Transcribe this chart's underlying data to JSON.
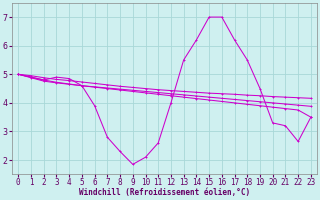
{
  "xlabel": "Windchill (Refroidissement éolien,°C)",
  "ylabel": "",
  "bg_color": "#cff0f0",
  "grid_color": "#a8d8d8",
  "line_color": "#cc00cc",
  "x": [
    0,
    1,
    2,
    3,
    4,
    5,
    6,
    7,
    8,
    9,
    10,
    11,
    12,
    13,
    14,
    15,
    16,
    17,
    18,
    19,
    20,
    21,
    22,
    23
  ],
  "y_main": [
    5.0,
    4.9,
    4.8,
    4.9,
    4.85,
    4.6,
    3.9,
    2.8,
    2.3,
    1.85,
    2.1,
    2.6,
    4.0,
    5.5,
    6.2,
    7.0,
    7.0,
    6.2,
    5.5,
    4.5,
    3.3,
    3.2,
    2.65,
    3.5
  ],
  "y_trend1": [
    5.0,
    4.95,
    4.88,
    4.82,
    4.78,
    4.73,
    4.68,
    4.63,
    4.58,
    4.54,
    4.5,
    4.46,
    4.43,
    4.4,
    4.37,
    4.34,
    4.32,
    4.3,
    4.27,
    4.25,
    4.22,
    4.2,
    4.18,
    4.16
  ],
  "y_trend2": [
    5.0,
    4.9,
    4.8,
    4.72,
    4.66,
    4.6,
    4.55,
    4.5,
    4.45,
    4.4,
    4.35,
    4.3,
    4.25,
    4.2,
    4.15,
    4.1,
    4.05,
    4.0,
    3.95,
    3.9,
    3.85,
    3.8,
    3.75,
    3.5
  ],
  "y_trend3": [
    5.0,
    4.88,
    4.76,
    4.7,
    4.65,
    4.6,
    4.56,
    4.52,
    4.48,
    4.44,
    4.4,
    4.36,
    4.32,
    4.28,
    4.24,
    4.2,
    4.16,
    4.12,
    4.08,
    4.04,
    4.0,
    3.96,
    3.92,
    3.88
  ],
  "xlim": [
    -0.5,
    23.5
  ],
  "ylim": [
    1.5,
    7.5
  ],
  "xticks": [
    0,
    1,
    2,
    3,
    4,
    5,
    6,
    7,
    8,
    9,
    10,
    11,
    12,
    13,
    14,
    15,
    16,
    17,
    18,
    19,
    20,
    21,
    22,
    23
  ],
  "yticks": [
    2,
    3,
    4,
    5,
    6,
    7
  ],
  "tick_fontsize": 5.5,
  "label_fontsize": 5.5
}
